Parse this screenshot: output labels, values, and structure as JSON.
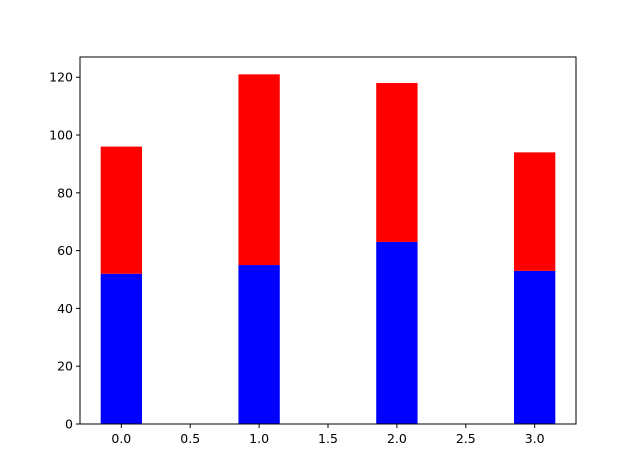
{
  "chart_data": {
    "type": "bar",
    "stacked": true,
    "x": [
      0,
      1,
      2,
      3
    ],
    "bar_width": 0.3,
    "series": [
      {
        "values": [
          52,
          55,
          63,
          53
        ],
        "color": "#0000ff"
      },
      {
        "values": [
          44,
          66,
          55,
          41
        ],
        "color": "#ff0000"
      }
    ],
    "xlim": [
      -0.3,
      3.3
    ],
    "ylim": [
      0,
      127
    ],
    "xticks": [
      "0.0",
      "0.5",
      "1.0",
      "1.5",
      "2.0",
      "2.5",
      "3.0"
    ],
    "xtick_values": [
      0,
      0.5,
      1,
      1.5,
      2,
      2.5,
      3
    ],
    "yticks": [
      "0",
      "20",
      "40",
      "60",
      "80",
      "100",
      "120"
    ],
    "ytick_values": [
      0,
      20,
      40,
      60,
      80,
      100,
      120
    ],
    "grid": false,
    "title": "",
    "xlabel": "",
    "ylabel": ""
  }
}
